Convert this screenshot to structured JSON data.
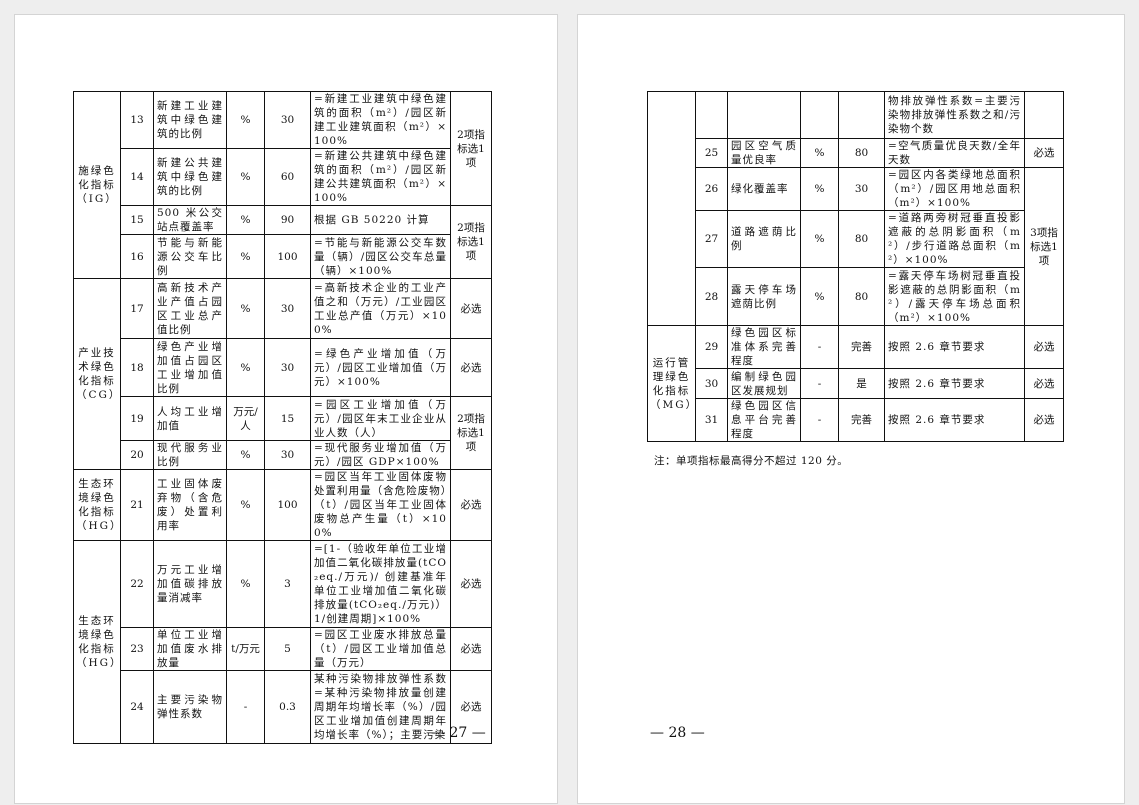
{
  "pages": [
    {
      "page_number": "— 27 —",
      "rows": [
        {
          "cat": "施绿色化指标（IG）",
          "cat_span": 4,
          "no": "13",
          "name": "新建工业建筑中绿色建筑的比例",
          "unit": "%",
          "value": "30",
          "formula": "=新建工业建筑中绿色建筑的面积（m²）/园区新建工业建筑面积（m²）×100%",
          "select": "2项指标选1项",
          "sel_span": 2
        },
        {
          "no": "14",
          "name": "新建公共建筑中绿色建筑的比例",
          "unit": "%",
          "value": "60",
          "formula": "=新建公共建筑中绿色建筑的面积（m²）/园区新建公共建筑面积（m²）×100%"
        },
        {
          "no": "15",
          "name": "500 米公交站点覆盖率",
          "unit": "%",
          "value": "90",
          "formula": "根据 GB 50220 计算",
          "select": "2项指标选1项",
          "sel_span": 2
        },
        {
          "no": "16",
          "name": "节能与新能源公交车比例",
          "unit": "%",
          "value": "100",
          "formula": "=节能与新能源公交车数量（辆）/园区公交车总量（辆）×100%"
        },
        {
          "cat": "产业技术绿色化指标（CG）",
          "cat_span": 4,
          "no": "17",
          "name": "高新技术产业产值占园区工业总产值比例",
          "unit": "%",
          "value": "30",
          "formula": "=高新技术企业的工业产值之和（万元）/工业园区工业总产值（万元）×100%",
          "select": "必选",
          "sel_span": 1
        },
        {
          "no": "18",
          "name": "绿色产业增加值占园区工业增加值比例",
          "unit": "%",
          "value": "30",
          "formula": "=绿色产业增加值（万元）/园区工业增加值（万元）×100%",
          "select": "必选",
          "sel_span": 1
        },
        {
          "no": "19",
          "name": "人均工业增加值",
          "unit": "万元/人",
          "value": "15",
          "formula": "=园区工业增加值（万元）/园区年末工业企业从业人数（人）",
          "select": "2项指标选1项",
          "sel_span": 2
        },
        {
          "no": "20",
          "name": "现代服务业比例",
          "unit": "%",
          "value": "30",
          "formula": "=现代服务业增加值（万元）/园区 GDP×100%"
        },
        {
          "cat": "生态环境绿色化指标（HG）",
          "cat_span": 1,
          "no": "21",
          "name": "工业固体废弃物（含危废）处置利用率",
          "unit": "%",
          "value": "100",
          "formula": "=园区当年工业固体废物处置利用量（含危险废物）（t）/园区当年工业固体废物总产生量（t）×100%",
          "select": "必选",
          "sel_span": 1
        },
        {
          "cat": "生态环境绿色化指标（HG）",
          "cat_span": 3,
          "no": "22",
          "name": "万元工业增加值碳排放量消减率",
          "unit": "%",
          "value": "3",
          "formula": "=[1-（验收年单位工业增加值二氧化碳排放量(tCO₂eq./万元)/ 创建基准年单位工业增加值二氧化碳排放量(tCO₂eq./万元)）1/创建周期]×100%",
          "select": "必选",
          "sel_span": 1
        },
        {
          "no": "23",
          "name": "单位工业增加值废水排放量",
          "unit": "t/万元",
          "value": "5",
          "formula": "=园区工业废水排放总量（t）/园区工业增加值总量（万元）",
          "select": "必选",
          "sel_span": 1
        },
        {
          "no": "24",
          "name": "主要污染物弹性系数",
          "unit": "-",
          "value": "0.3",
          "formula": "某种污染物排放弹性系数=某种污染物排放量创建周期年均增长率（%）/园区工业增加值创建周期年均增长率（%）；主要污染",
          "select": "必选",
          "sel_span": 1
        }
      ]
    },
    {
      "page_number": "— 28 —",
      "note": "注：单项指标最高得分不超过 120 分。",
      "rows": [
        {
          "cat": "",
          "cat_span": 5,
          "no": "",
          "name": "",
          "unit": "",
          "value": "",
          "formula": "物排放弹性系数=主要污染物排放弹性系数之和/污染物个数",
          "select": "",
          "sel_span": 1
        },
        {
          "no": "25",
          "name": "园区空气质量优良率",
          "unit": "%",
          "value": "80",
          "formula": "=空气质量优良天数/全年天数",
          "select": "必选",
          "sel_span": 1
        },
        {
          "no": "26",
          "name": "绿化覆盖率",
          "unit": "%",
          "value": "30",
          "formula": "=园区内各类绿地总面积（m²）/园区用地总面积（m²）×100%",
          "select": "3项指标选1项",
          "sel_span": 3
        },
        {
          "no": "27",
          "name": "道路遮荫比例",
          "unit": "%",
          "value": "80",
          "formula": "=道路两旁树冠垂直投影遮蔽的总阴影面积（m²）/步行道路总面积（m²）×100%"
        },
        {
          "no": "28",
          "name": "露天停车场遮荫比例",
          "unit": "%",
          "value": "80",
          "formula": "=露天停车场树冠垂直投影遮蔽的总阴影面积（m²）/露天停车场总面积（m²）×100%"
        },
        {
          "cat": "运行管理绿色化指标（MG）",
          "cat_span": 3,
          "no": "29",
          "name": "绿色园区标准体系完善程度",
          "unit": "-",
          "value": "完善",
          "formula": "按照 2.6 章节要求",
          "select": "必选",
          "sel_span": 1
        },
        {
          "no": "30",
          "name": "编制绿色园区发展规划",
          "unit": "-",
          "value": "是",
          "formula": "按照 2.6 章节要求",
          "select": "必选",
          "sel_span": 1
        },
        {
          "no": "31",
          "name": "绿色园区信息平台完善程度",
          "unit": "-",
          "value": "完善",
          "formula": "按照 2.6 章节要求",
          "select": "必选",
          "sel_span": 1
        }
      ]
    }
  ]
}
